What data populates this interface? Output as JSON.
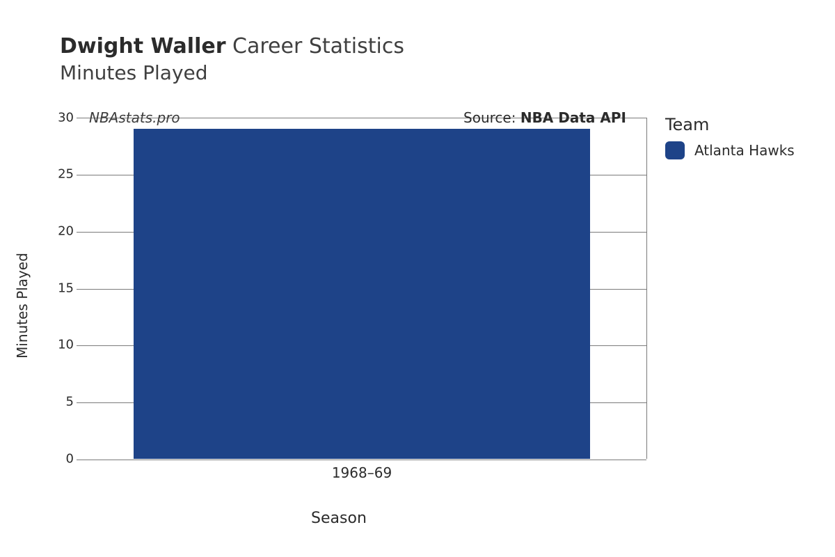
{
  "title": {
    "player_name": "Dwight Waller",
    "suffix": "Career Statistics",
    "subtitle": "Minutes Played"
  },
  "chart": {
    "type": "bar",
    "xlabel": "Season",
    "ylabel": "Minutes Played",
    "ylim": [
      0,
      30
    ],
    "ytick_step": 5,
    "yticks": [
      0,
      5,
      10,
      15,
      20,
      25,
      30
    ],
    "categories": [
      "1968–69"
    ],
    "values": [
      29
    ],
    "bar_colors": [
      "#1e4388"
    ],
    "bar_width": 0.8,
    "background_color": "#ffffff",
    "grid_color": "#7a7a7a",
    "axis_color": "#7a7a7a",
    "tick_fontsize": 18,
    "label_fontsize": 20,
    "title_fontsize": 30
  },
  "annotations": {
    "watermark": "NBAstats.pro",
    "source_prefix": "Source: ",
    "source_name": "NBA Data API"
  },
  "legend": {
    "title": "Team",
    "items": [
      {
        "label": "Atlanta Hawks",
        "color": "#1e4388"
      }
    ]
  }
}
